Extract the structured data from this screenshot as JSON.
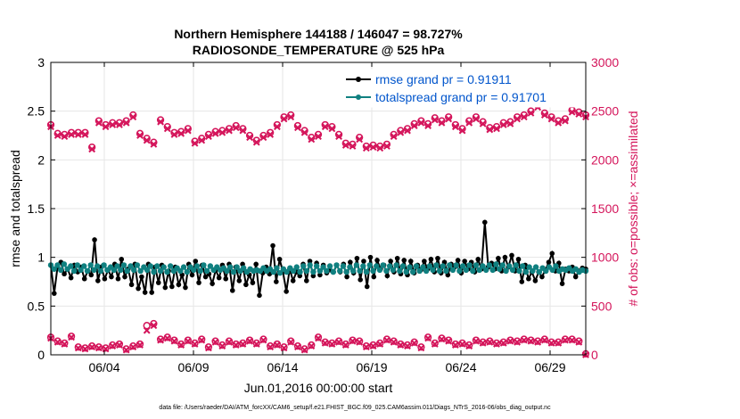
{
  "chart_data": {
    "type": "line",
    "title_line1": "Northern Hemisphere 144188 / 146047 = 98.727%",
    "title_line2": "RADIOSONDE_TEMPERATURE @ 525 hPa",
    "ylabel_left": "rmse and totalspread",
    "ylabel_right": "# of obs: o=possible; ×=assimilated",
    "xlabel": "Jun.01,2016 00:00:00 start",
    "footer": "data file: /Users/raeder/DAI/ATM_forcXX/CAM6_setup/f.e21.FHIST_BGC.f09_025.CAM6assim.011/Diags_NTrS_2016-06/obs_diag_output.nc",
    "x_range_days": [
      1.0,
      31.0
    ],
    "x_ticks": [
      {
        "day": 4,
        "label": "06/04"
      },
      {
        "day": 9,
        "label": "06/09"
      },
      {
        "day": 14,
        "label": "06/14"
      },
      {
        "day": 19,
        "label": "06/19"
      },
      {
        "day": 24,
        "label": "06/24"
      },
      {
        "day": 29,
        "label": "06/29"
      }
    ],
    "ylim_left": [
      0,
      3
    ],
    "yticks_left": [
      "0",
      "0.5",
      "1",
      "1.5",
      "2",
      "2.5",
      "3"
    ],
    "ylim_right": [
      0,
      3000
    ],
    "yticks_right": [
      "0",
      "500",
      "1000",
      "1500",
      "2000",
      "2500",
      "3000"
    ],
    "grid": true,
    "legend_position": "top-right",
    "colors": {
      "rmse": "#000000",
      "spread": "#108080",
      "obs": "#d4145a",
      "legend_text": "#0055cc"
    },
    "series": [
      {
        "name": "rmse",
        "legend": "rmse grand pr = 0.91911",
        "values": [
          0.92,
          0.63,
          0.9,
          0.95,
          0.83,
          0.88,
          0.79,
          0.92,
          0.85,
          0.9,
          0.78,
          0.86,
          0.82,
          1.18,
          0.76,
          0.9,
          0.78,
          0.87,
          0.8,
          0.93,
          0.78,
          0.98,
          0.8,
          0.88,
          0.72,
          0.93,
          0.68,
          0.8,
          0.64,
          0.93,
          0.64,
          0.9,
          0.74,
          0.92,
          0.69,
          0.86,
          0.7,
          0.9,
          0.72,
          0.82,
          0.69,
          0.93,
          0.82,
          0.96,
          0.74,
          0.92,
          0.8,
          0.83,
          0.73,
          0.87,
          0.79,
          0.92,
          0.78,
          0.93,
          0.66,
          0.9,
          0.76,
          0.93,
          0.72,
          0.82,
          0.74,
          0.93,
          0.61,
          0.84,
          0.9,
          0.83,
          1.12,
          0.75,
          0.98,
          0.85,
          0.65,
          0.88,
          0.76,
          0.85,
          0.81,
          0.93,
          0.76,
          0.96,
          0.81,
          0.94,
          0.82,
          0.92,
          0.84,
          0.87,
          0.85,
          0.92,
          0.85,
          0.93,
          0.8,
          0.95,
          0.84,
          0.99,
          0.77,
          0.96,
          0.7,
          1.0,
          0.8,
          0.97,
          0.88,
          0.92,
          0.81,
          0.96,
          0.85,
          0.99,
          0.83,
          0.97,
          0.82,
          0.96,
          0.84,
          0.92,
          0.87,
          0.96,
          0.88,
          0.98,
          0.85,
          0.99,
          0.84,
          0.95,
          0.82,
          0.93,
          0.9,
          0.97,
          0.84,
          0.96,
          0.88,
          0.95,
          0.85,
          0.98,
          0.88,
          1.36,
          0.9,
          0.94,
          0.88,
          0.99,
          0.86,
          1.0,
          0.9,
          1.02,
          0.86,
          0.98,
          0.75,
          0.92,
          0.78,
          0.85,
          0.76,
          0.85,
          0.8,
          0.87,
          0.95,
          1.04,
          0.86,
          0.94,
          0.73,
          0.88,
          0.86,
          0.9,
          0.8,
          0.86,
          0.89,
          0.88
        ]
      },
      {
        "name": "totalspread",
        "legend": "totalspread grand pr = 0.91701",
        "values": [
          0.92,
          0.88,
          0.92,
          0.87,
          0.93,
          0.88,
          0.91,
          0.86,
          0.92,
          0.87,
          0.91,
          0.86,
          0.92,
          0.87,
          0.91,
          0.86,
          0.92,
          0.87,
          0.9,
          0.87,
          0.91,
          0.87,
          0.92,
          0.86,
          0.91,
          0.87,
          0.92,
          0.86,
          0.9,
          0.87,
          0.91,
          0.85,
          0.91,
          0.86,
          0.9,
          0.85,
          0.91,
          0.86,
          0.89,
          0.86,
          0.9,
          0.85,
          0.9,
          0.87,
          0.91,
          0.86,
          0.92,
          0.86,
          0.91,
          0.87,
          0.9,
          0.87,
          0.89,
          0.86,
          0.9,
          0.85,
          0.9,
          0.86,
          0.89,
          0.85,
          0.88,
          0.86,
          0.87,
          0.86,
          0.89,
          0.86,
          0.88,
          0.85,
          0.89,
          0.84,
          0.88,
          0.85,
          0.89,
          0.86,
          0.9,
          0.85,
          0.91,
          0.86,
          0.92,
          0.85,
          0.91,
          0.86,
          0.9,
          0.86,
          0.91,
          0.85,
          0.92,
          0.86,
          0.91,
          0.85,
          0.9,
          0.86,
          0.92,
          0.86,
          0.91,
          0.85,
          0.92,
          0.86,
          0.91,
          0.87,
          0.92,
          0.86,
          0.91,
          0.87,
          0.92,
          0.86,
          0.91,
          0.85,
          0.9,
          0.85,
          0.91,
          0.86,
          0.9,
          0.86,
          0.91,
          0.87,
          0.92,
          0.86,
          0.91,
          0.86,
          0.92,
          0.87,
          0.92,
          0.86,
          0.91,
          0.87,
          0.92,
          0.86,
          0.92,
          0.87,
          0.91,
          0.87,
          0.92,
          0.87,
          0.93,
          0.88,
          0.92,
          0.86,
          0.91,
          0.87,
          0.92,
          0.86,
          0.91,
          0.85,
          0.9,
          0.86,
          0.9,
          0.85,
          0.89,
          0.86,
          0.9,
          0.87,
          0.91,
          0.86,
          0.88,
          0.87,
          0.89,
          0.86,
          0.88,
          0.85,
          0.87,
          0.86
        ]
      },
      {
        "name": "obs_possible",
        "values": [
          2360,
          2270,
          2260,
          2280,
          2280,
          2280,
          2130,
          2400,
          2360,
          2380,
          2380,
          2400,
          2460,
          2270,
          2220,
          2180,
          2410,
          2340,
          2280,
          2290,
          2320,
          2190,
          2220,
          2260,
          2290,
          2300,
          2320,
          2350,
          2320,
          2250,
          2200,
          2250,
          2280,
          2360,
          2440,
          2460,
          2350,
          2300,
          2230,
          2260,
          2360,
          2340,
          2260,
          2170,
          2160,
          2230,
          2140,
          2150,
          2140,
          2160,
          2260,
          2300,
          2320,
          2370,
          2400,
          2370,
          2430,
          2400,
          2440,
          2360,
          2320,
          2400,
          2440,
          2390,
          2330,
          2340,
          2380,
          2390,
          2440,
          2460,
          2500,
          2560,
          2480,
          2440,
          2400,
          2420,
          2510,
          2490,
          2460
        ]
      },
      {
        "name": "obs_assimilated",
        "values": [
          2340,
          2250,
          2240,
          2260,
          2260,
          2260,
          2110,
          2380,
          2340,
          2360,
          2360,
          2380,
          2440,
          2250,
          2200,
          2160,
          2390,
          2320,
          2260,
          2270,
          2300,
          2170,
          2200,
          2240,
          2270,
          2280,
          2300,
          2330,
          2300,
          2230,
          2180,
          2230,
          2260,
          2340,
          2420,
          2440,
          2330,
          2280,
          2210,
          2240,
          2340,
          2320,
          2240,
          2150,
          2140,
          2210,
          2120,
          2130,
          2120,
          2140,
          2240,
          2280,
          2300,
          2350,
          2380,
          2350,
          2410,
          2380,
          2420,
          2340,
          2300,
          2380,
          2420,
          2370,
          2310,
          2320,
          2360,
          2370,
          2420,
          2440,
          2480,
          2540,
          2460,
          2420,
          2380,
          2400,
          2490,
          2470,
          2440
        ]
      },
      {
        "name": "obs_possible_low",
        "values": [
          180,
          140,
          120,
          190,
          80,
          70,
          90,
          80,
          70,
          100,
          110,
          60,
          90,
          110,
          300,
          320,
          160,
          180,
          150,
          110,
          150,
          120,
          160,
          80,
          140,
          100,
          140,
          110,
          120,
          150,
          120,
          160,
          90,
          110,
          80,
          140,
          90,
          60,
          100,
          180,
          130,
          120,
          140,
          110,
          150,
          140,
          90,
          100,
          120,
          160,
          140,
          110,
          100,
          130,
          80,
          180,
          120,
          170,
          150,
          110,
          120,
          100,
          150,
          130,
          140,
          120,
          130,
          150,
          140,
          160,
          150,
          140,
          160,
          130,
          130,
          160,
          160,
          140,
          10
        ]
      },
      {
        "name": "obs_assimilated_low",
        "values": [
          170,
          130,
          110,
          180,
          70,
          60,
          80,
          70,
          60,
          90,
          100,
          50,
          80,
          100,
          250,
          300,
          150,
          170,
          140,
          100,
          140,
          110,
          150,
          70,
          130,
          90,
          130,
          100,
          110,
          140,
          110,
          150,
          80,
          100,
          70,
          130,
          80,
          50,
          90,
          170,
          120,
          110,
          130,
          100,
          140,
          130,
          80,
          90,
          110,
          150,
          130,
          100,
          90,
          120,
          70,
          170,
          110,
          160,
          140,
          100,
          110,
          90,
          140,
          120,
          130,
          110,
          120,
          140,
          130,
          150,
          140,
          130,
          150,
          120,
          120,
          150,
          150,
          130,
          0
        ]
      }
    ]
  }
}
